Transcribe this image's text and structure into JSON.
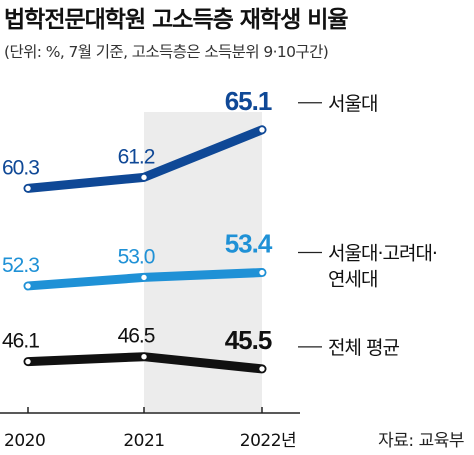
{
  "title": "법학전문대학원 고소득층 재학생 비율",
  "subtitle": "(단위: %, 7월 기준, 고소득층은 소득분위 9·10구간)",
  "source": "자료: 교육부",
  "colors": {
    "seoul": "#0f4896",
    "skyk": "#1f91d6",
    "average": "#111111",
    "band": "#ececec"
  },
  "chart_data": {
    "type": "line",
    "x": [
      "2020",
      "2021",
      "2022년"
    ],
    "ylim": [
      40,
      70
    ],
    "grid": false,
    "series": [
      {
        "name": "서울대",
        "values": [
          60.3,
          61.2,
          65.1
        ],
        "labels": [
          "60.3",
          "61.2",
          "65.1"
        ],
        "color": "#0f4896",
        "legend": [
          "서울대"
        ]
      },
      {
        "name": "서울대·고려대·연세대",
        "values": [
          52.3,
          53.0,
          53.4
        ],
        "labels": [
          "52.3",
          "53.0",
          "53.4"
        ],
        "color": "#1f91d6",
        "legend": [
          "서울대·고려대·",
          "연세대"
        ]
      },
      {
        "name": "전체 평균",
        "values": [
          46.1,
          46.5,
          45.5
        ],
        "labels": [
          "46.1",
          "46.5",
          "45.5"
        ],
        "color": "#111111",
        "legend": [
          "전체 평균"
        ]
      }
    ]
  }
}
